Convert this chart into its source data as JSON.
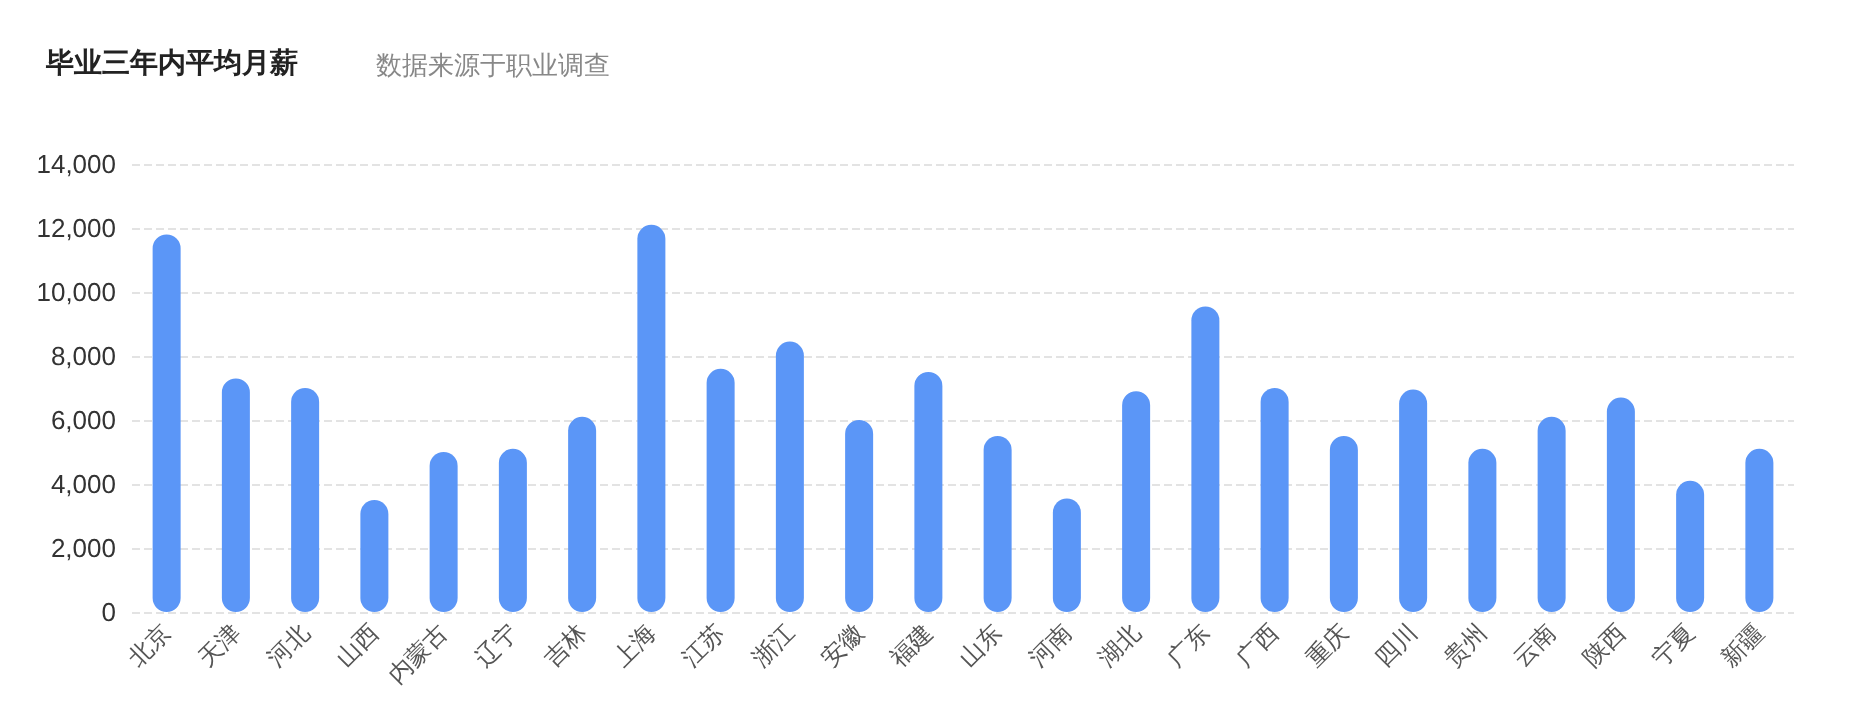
{
  "chart_data": {
    "type": "bar",
    "title": "毕业三年内平均月薪",
    "subtitle": "数据来源于职业调查",
    "categories": [
      "北京",
      "天津",
      "河北",
      "山西",
      "内蒙古",
      "辽宁",
      "吉林",
      "上海",
      "江苏",
      "浙江",
      "安徽",
      "福建",
      "山东",
      "河南",
      "湖北",
      "广东",
      "广西",
      "重庆",
      "四川",
      "贵州",
      "云南",
      "陕西",
      "宁夏",
      "新疆"
    ],
    "values": [
      11800,
      7300,
      7000,
      3500,
      5000,
      5100,
      6100,
      12100,
      7600,
      8450,
      6000,
      7500,
      5500,
      3550,
      6900,
      9550,
      7000,
      5500,
      6950,
      5100,
      6100,
      6700,
      4100,
      5100
    ],
    "color": "#5b96f7",
    "ylim": [
      0,
      14000
    ],
    "yticks": [
      0,
      {
        "value": 2000,
        "label": "2,000"
      },
      {
        "value": 4000,
        "label": "4,000"
      },
      {
        "value": 6000,
        "label": "6,000"
      },
      {
        "value": 8000,
        "label": "8,000"
      },
      {
        "value": 10000,
        "label": "10,000"
      },
      {
        "value": 12000,
        "label": "12,000"
      },
      {
        "value": 14000,
        "label": "14,000"
      }
    ],
    "grid": "y"
  }
}
